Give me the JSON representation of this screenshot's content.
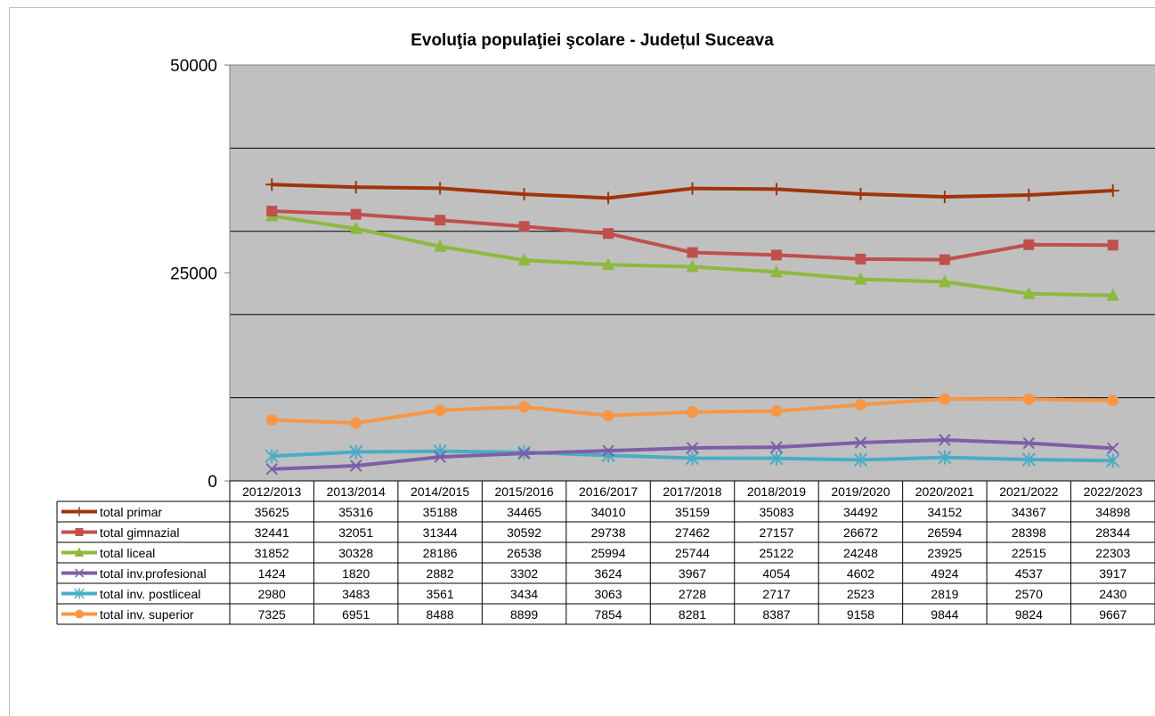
{
  "chart_data": {
    "type": "line",
    "title": "Evoluţia populaţiei şcolare - Județul Suceava",
    "categories": [
      "2012/2013",
      "2013/2014",
      "2014/2015",
      "2015/2016",
      "2016/2017",
      "2017/2018",
      "2018/2019",
      "2019/2020",
      "2020/2021",
      "2021/2022",
      "2022/2023"
    ],
    "ylim": [
      0,
      50000
    ],
    "y_tick_labels": [
      "0",
      "25000",
      "50000"
    ],
    "gridlines": [
      10000,
      20000,
      30000,
      40000
    ],
    "plot_background": "#c0c0c0",
    "legend": "data table below chart",
    "series": [
      {
        "name": "total primar",
        "color": "#a0340a",
        "marker": "plus",
        "values": [
          35625,
          35316,
          35188,
          34465,
          34010,
          35159,
          35083,
          34492,
          34152,
          34367,
          34898
        ]
      },
      {
        "name": "total gimnazial",
        "color": "#c0504d",
        "marker": "square",
        "values": [
          32441,
          32051,
          31344,
          30592,
          29738,
          27462,
          27157,
          26672,
          26594,
          28398,
          28344
        ]
      },
      {
        "name": "total liceal",
        "color": "#8db93e",
        "marker": "triangle",
        "values": [
          31852,
          30328,
          28186,
          26538,
          25994,
          25744,
          25122,
          24248,
          23925,
          22515,
          22303
        ]
      },
      {
        "name": "total inv.profesional",
        "color": "#7f5ea8",
        "marker": "x",
        "values": [
          1424,
          1820,
          2882,
          3302,
          3624,
          3967,
          4054,
          4602,
          4924,
          4537,
          3917
        ]
      },
      {
        "name": "total inv. postliceal",
        "color": "#4bacc6",
        "marker": "star",
        "values": [
          2980,
          3483,
          3561,
          3434,
          3063,
          2728,
          2717,
          2523,
          2819,
          2570,
          2430
        ]
      },
      {
        "name": "total inv. superior",
        "color": "#f79646",
        "marker": "circle",
        "values": [
          7325,
          6951,
          8488,
          8899,
          7854,
          8281,
          8387,
          9158,
          9844,
          9824,
          9667
        ]
      }
    ]
  }
}
